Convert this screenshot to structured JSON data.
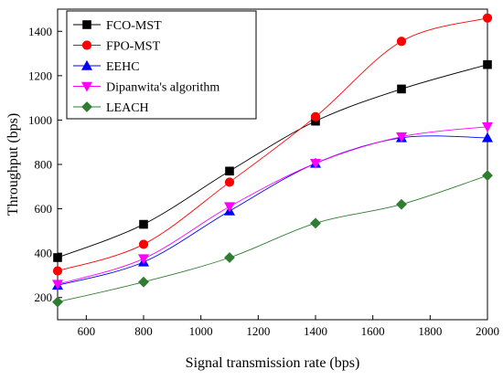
{
  "chart_data": {
    "type": "line",
    "xlabel": "Signal transmission rate (bps)",
    "ylabel": "Throughput (bps)",
    "xlim": [
      500,
      2000
    ],
    "ylim": [
      100,
      1500
    ],
    "x_ticks": [
      600,
      800,
      1000,
      1200,
      1400,
      1600,
      1800,
      2000
    ],
    "y_ticks": [
      200,
      400,
      600,
      800,
      1000,
      1200,
      1400
    ],
    "x": [
      500,
      800,
      1100,
      1400,
      1700,
      2000
    ],
    "grid": false,
    "legend_position": "top-left",
    "series": [
      {
        "name": "FCO-MST",
        "color": "#000000",
        "marker": "square",
        "values": [
          380,
          530,
          770,
          995,
          1140,
          1250
        ]
      },
      {
        "name": "FPO-MST",
        "color": "#ff0000",
        "marker": "circle",
        "values": [
          320,
          440,
          720,
          1015,
          1355,
          1460
        ]
      },
      {
        "name": "EEHC",
        "color": "#0000ff",
        "marker": "triangle-up",
        "values": [
          255,
          360,
          590,
          805,
          920,
          920
        ]
      },
      {
        "name": "Dipanwita's algorithm",
        "color": "#ff00ff",
        "marker": "triangle-down",
        "values": [
          260,
          375,
          610,
          805,
          925,
          970
        ]
      },
      {
        "name": "LEACH",
        "color": "#2e7d32",
        "marker": "diamond",
        "values": [
          180,
          270,
          380,
          535,
          620,
          750
        ]
      }
    ]
  }
}
